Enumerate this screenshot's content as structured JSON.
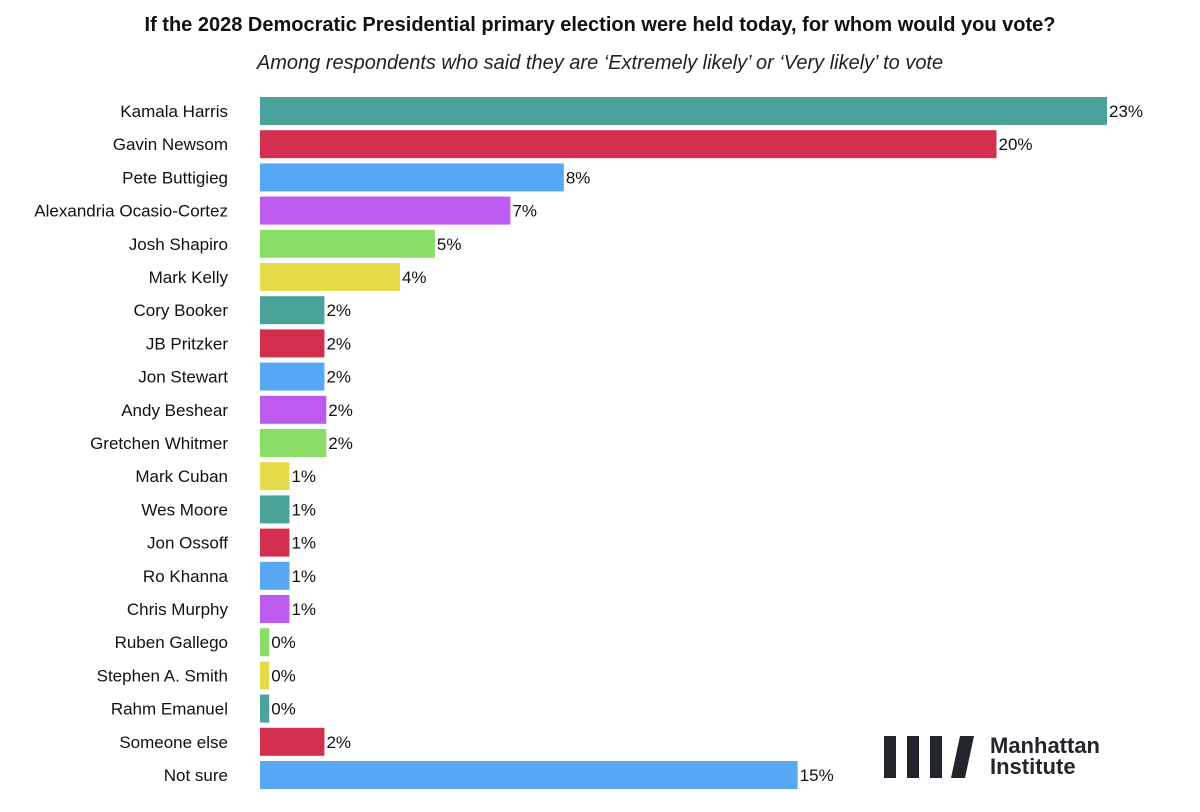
{
  "chart_data": {
    "type": "bar",
    "orientation": "horizontal",
    "title": "If the 2028 Democratic Presidential primary election were held today, for whom would you vote?",
    "subtitle": "Among respondents who said they are ‘Extremely likely’ or ‘Very likely’ to vote",
    "xlabel": "",
    "ylabel": "",
    "xlim": [
      0,
      23
    ],
    "grid": false,
    "legend": "none",
    "categories": [
      "Kamala Harris",
      "Gavin Newsom",
      "Pete Buttigieg",
      "Alexandria Ocasio-Cortez",
      "Josh Shapiro",
      "Mark Kelly",
      "Cory Booker",
      "JB Pritzker",
      "Jon Stewart",
      "Andy Beshear",
      "Gretchen Whitmer",
      "Mark Cuban",
      "Wes Moore",
      "Jon Ossoff",
      "Ro Khanna",
      "Chris Murphy",
      "Ruben Gallego",
      "Stephen A.  Smith",
      "Rahm Emanuel",
      "Someone else",
      "Not sure"
    ],
    "values": [
      23.0,
      20.0,
      8.25,
      6.8,
      4.75,
      3.8,
      1.75,
      1.75,
      1.75,
      1.8,
      1.8,
      0.8,
      0.8,
      0.8,
      0.8,
      0.8,
      0.25,
      0.25,
      0.25,
      1.75,
      14.6
    ],
    "data_labels": [
      "23%",
      "20%",
      "8%",
      "7%",
      "5%",
      "4%",
      "2%",
      "2%",
      "2%",
      "2%",
      "2%",
      "1%",
      "1%",
      "1%",
      "1%",
      "1%",
      "0%",
      "0%",
      "0%",
      "2%",
      "15%"
    ],
    "colors": [
      "#4aa39a",
      "#d42e4e",
      "#56a8f5",
      "#bd5af0",
      "#8ade68",
      "#e5da4a"
    ]
  },
  "logo": {
    "line1": "Manhattan",
    "line2": "Institute"
  }
}
